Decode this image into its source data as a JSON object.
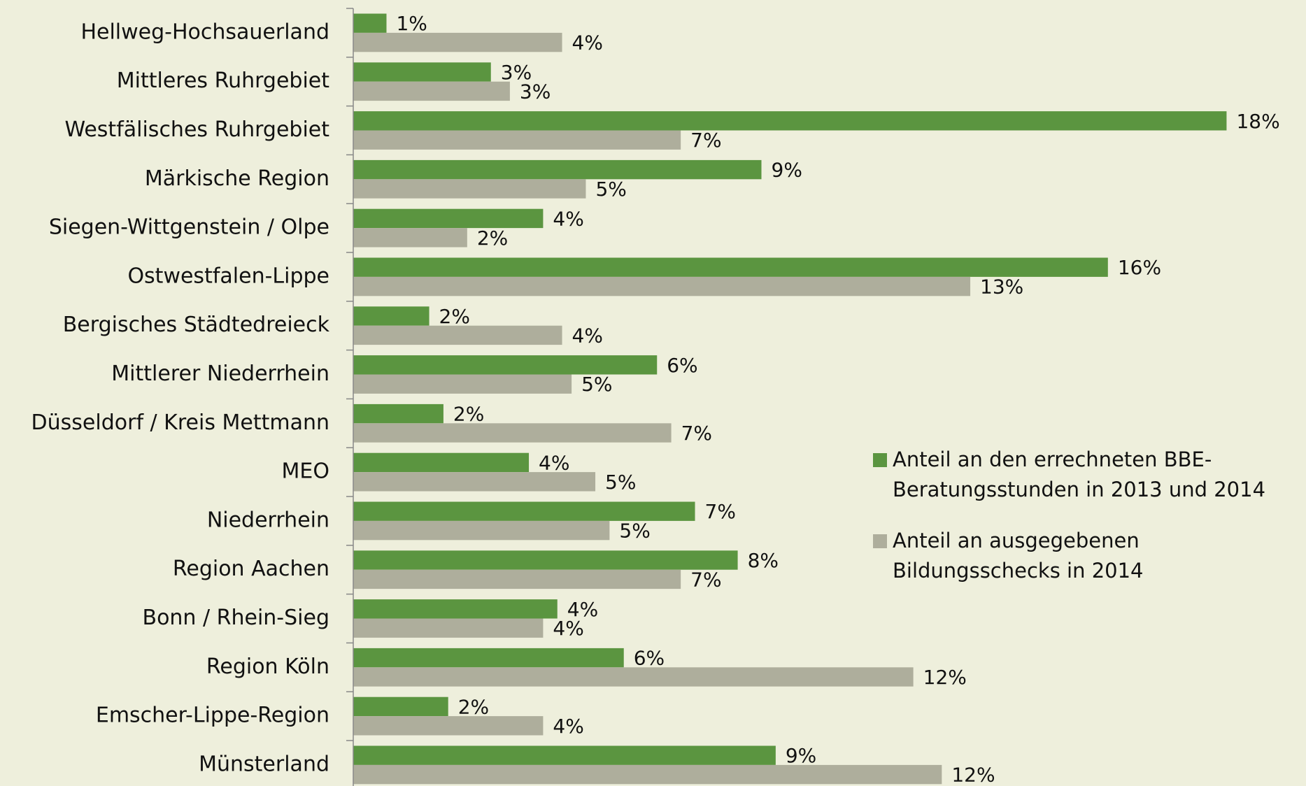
{
  "chart_data": {
    "type": "hbar",
    "categories": [
      "Hellweg-Hochsauerland",
      "Mittleres Ruhrgebiet",
      "Westfälisches Ruhrgebiet",
      "Märkische Region",
      "Siegen-Wittgenstein / Olpe",
      "Ostwestfalen-Lippe",
      "Bergisches Städtedreieck",
      "Mittlerer Niederrhein",
      "Düsseldorf / Kreis Mettmann",
      "MEO",
      "Niederrhein",
      "Region Aachen",
      "Bonn / Rhein-Sieg",
      "Region Köln",
      "Emscher-Lippe-Region",
      "Münsterland"
    ],
    "series": [
      {
        "name": "Anteil an den errechneten BBE-Beratungsstunden in 2013 und 2014",
        "color": "#5b9540",
        "values": [
          0.7,
          2.9,
          18.4,
          8.6,
          4.0,
          15.9,
          1.6,
          6.4,
          1.9,
          3.7,
          7.2,
          8.1,
          4.3,
          5.7,
          2.0,
          8.9
        ],
        "value_labels": [
          "1%",
          "3%",
          "18%",
          "9%",
          "4%",
          "16%",
          "2%",
          "6%",
          "2%",
          "4%",
          "7%",
          "8%",
          "4%",
          "6%",
          "2%",
          "9%"
        ]
      },
      {
        "name": "Anteil an ausgegebenen Bildungsschecks in 2014",
        "color": "#aeae9c",
        "values": [
          4.4,
          3.3,
          6.9,
          4.9,
          2.4,
          13.0,
          4.4,
          4.6,
          6.7,
          5.1,
          5.4,
          6.9,
          4.0,
          11.8,
          4.0,
          12.4
        ],
        "value_labels": [
          "4%",
          "3%",
          "7%",
          "5%",
          "2%",
          "13%",
          "4%",
          "5%",
          "7%",
          "5%",
          "5%",
          "7%",
          "4%",
          "12%",
          "4%",
          "12%"
        ]
      }
    ],
    "xlim": [
      0,
      20
    ]
  }
}
